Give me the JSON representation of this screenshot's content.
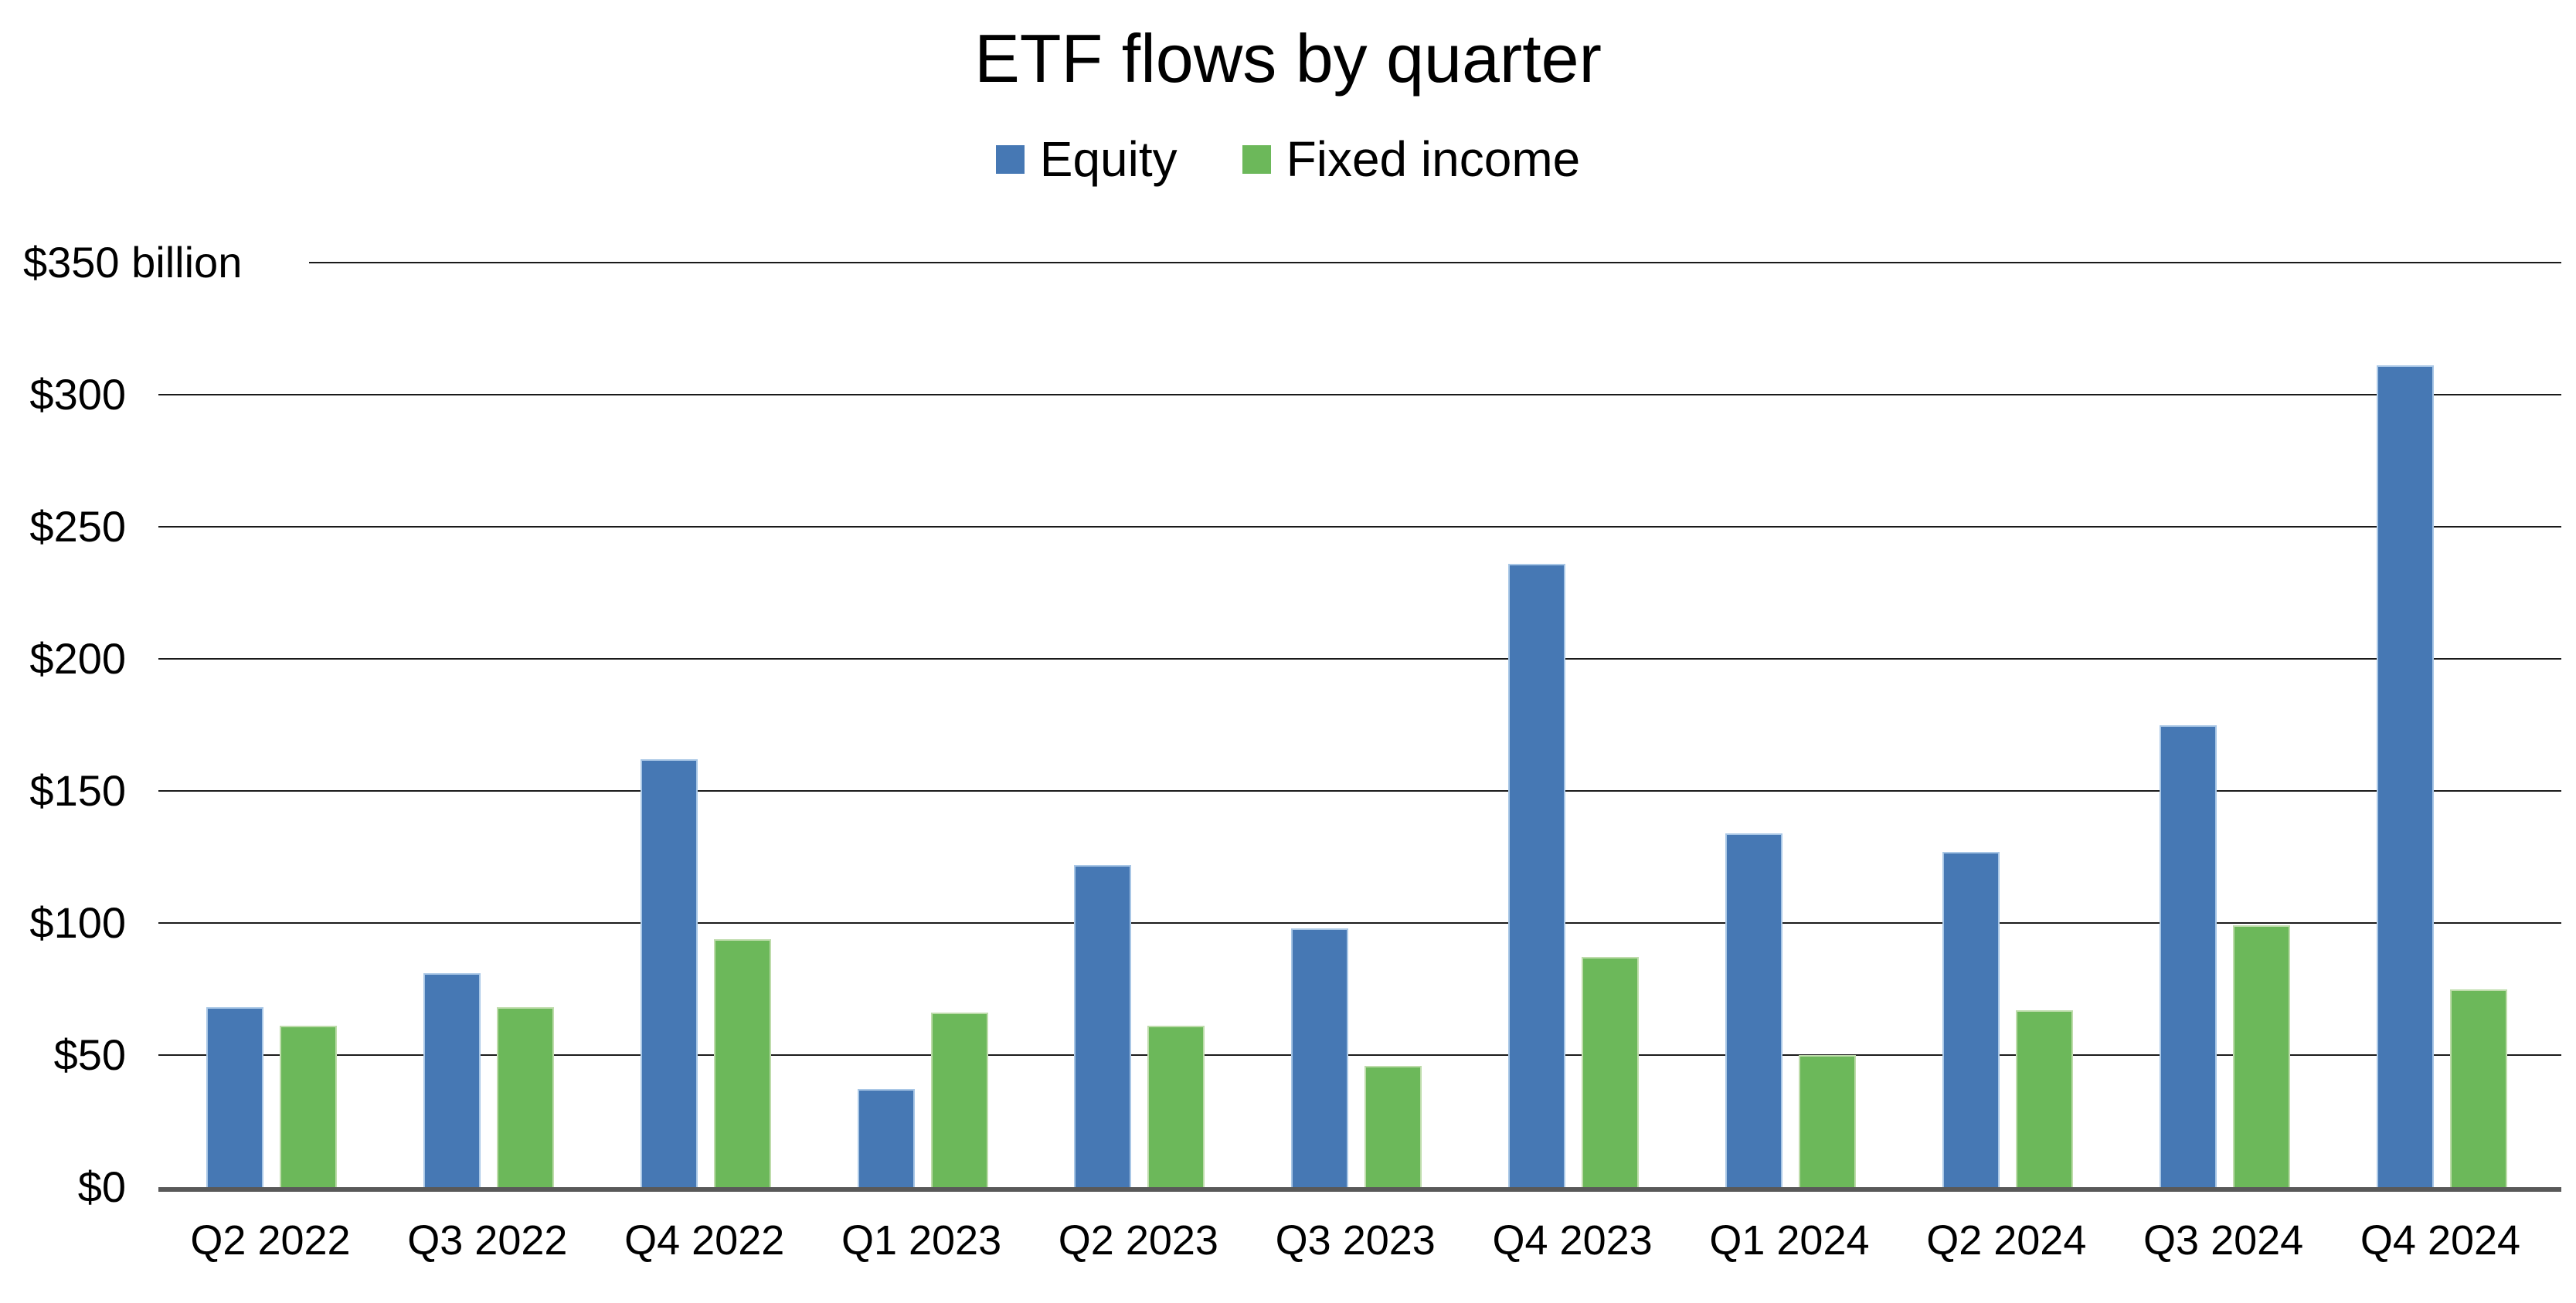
{
  "chart_data": {
    "type": "bar",
    "title": "ETF flows by quarter",
    "legend_position": "top",
    "categories": [
      "Q2 2022",
      "Q3 2022",
      "Q4 2022",
      "Q1 2023",
      "Q2 2023",
      "Q3 2023",
      "Q4 2023",
      "Q1 2024",
      "Q2 2024",
      "Q3 2024",
      "Q4 2024"
    ],
    "series": [
      {
        "name": "Equity",
        "color": "#4678b4",
        "border_color": "#a9c7e6",
        "values": [
          68,
          81,
          162,
          37,
          122,
          98,
          236,
          134,
          127,
          175,
          311
        ]
      },
      {
        "name": "Fixed income",
        "color": "#6cb85a",
        "border_color": "#bedcab",
        "values": [
          61,
          68,
          94,
          66,
          61,
          46,
          87,
          50,
          67,
          99,
          75
        ]
      }
    ],
    "xlabel": "",
    "ylabel": "",
    "unit": "billion",
    "ylim": [
      0,
      350
    ],
    "y_tick_interval": 50,
    "y_tick_labels": [
      "$0",
      "$50",
      "$100",
      "$150",
      "$200",
      "$250",
      "$300",
      "$350 billion"
    ],
    "grid": true,
    "gridline_color": "#1a1a1a",
    "axis_color": "#595959",
    "background_color": "#ffffff"
  }
}
